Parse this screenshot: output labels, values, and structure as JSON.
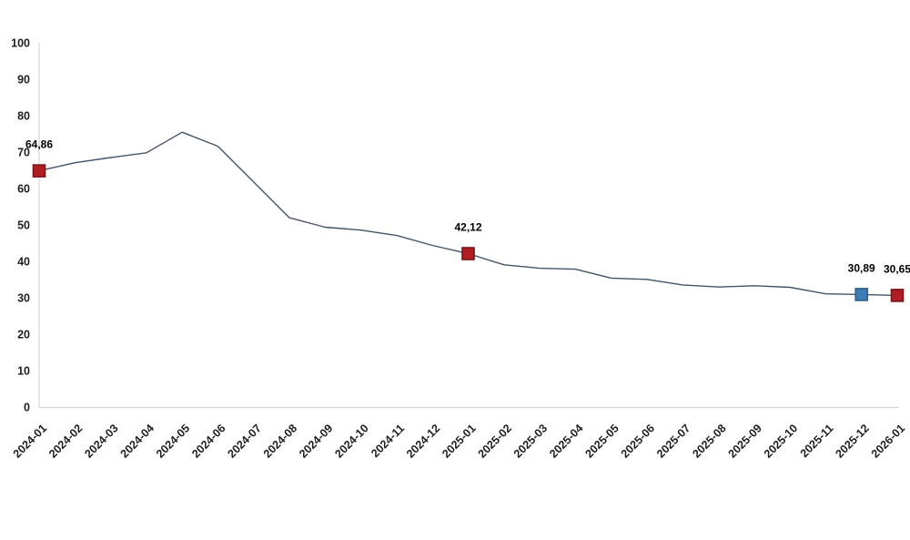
{
  "page": {
    "background": "#ffffff"
  },
  "colors": {
    "line": "#44546a",
    "axis": "#d6d6d6",
    "tick_text": "#1f1f1f",
    "label_text": "#000000",
    "marker_red_fill": "#b01e24",
    "marker_red_border": "#7e1216",
    "marker_blue_fill": "#3f7cb6",
    "marker_blue_border": "#2d5e8e"
  },
  "chart_data": {
    "type": "line",
    "x": [
      "2024-01",
      "2024-02",
      "2024-03",
      "2024-04",
      "2024-05",
      "2024-06",
      "2024-07",
      "2024-08",
      "2024-09",
      "2024-10",
      "2024-11",
      "2024-12",
      "2025-01",
      "2025-02",
      "2025-03",
      "2025-04",
      "2025-05",
      "2025-06",
      "2025-07",
      "2025-08",
      "2025-09",
      "2025-10",
      "2025-11",
      "2025-12",
      "2026-01"
    ],
    "series": [
      {
        "name": "",
        "values": [
          64.86,
          67.07,
          68.5,
          69.8,
          75.45,
          71.6,
          61.78,
          51.97,
          49.38,
          48.58,
          47.09,
          44.38,
          42.12,
          39.05,
          38.1,
          37.86,
          35.41,
          35.05,
          33.52,
          32.95,
          33.29,
          32.87,
          31.07,
          30.89,
          30.65
        ]
      }
    ],
    "title": "",
    "xlabel": "",
    "ylabel": "",
    "ylim": [
      0,
      100
    ],
    "ytick_step": 10,
    "grid": false,
    "legend": "none",
    "highlights": [
      {
        "x": "2024-01",
        "value": 64.86,
        "label": "64,86",
        "color": "red"
      },
      {
        "x": "2025-01",
        "value": 42.12,
        "label": "42,12",
        "color": "red"
      },
      {
        "x": "2025-12",
        "value": 30.89,
        "label": "30,89",
        "color": "blue"
      },
      {
        "x": "2026-01",
        "value": 30.65,
        "label": "30,65",
        "color": "red"
      }
    ]
  }
}
